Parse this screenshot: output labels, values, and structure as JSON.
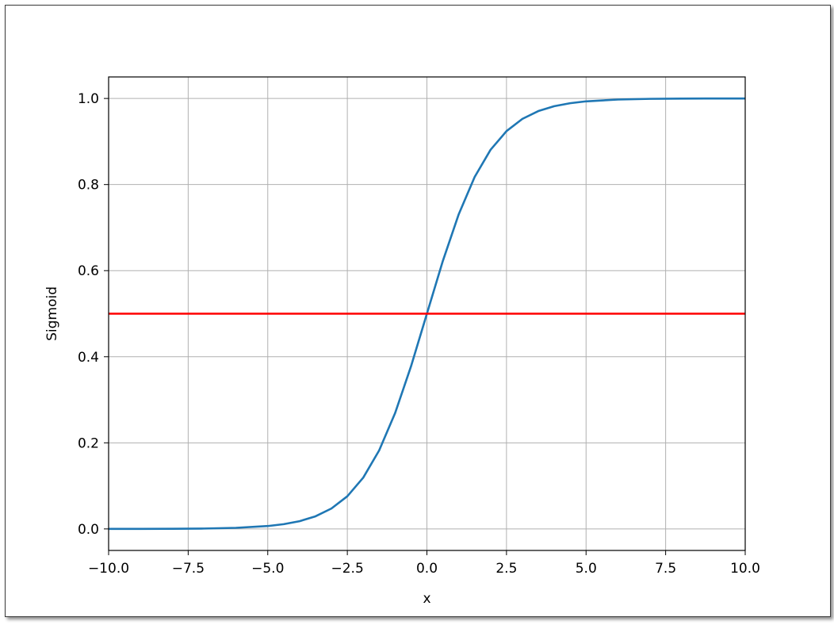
{
  "chart_data": {
    "type": "line",
    "xlabel": "x",
    "ylabel": "Sigmoid",
    "xlim": [
      -10.0,
      10.0
    ],
    "ylim": [
      -0.05,
      1.05
    ],
    "grid": true,
    "x_ticks": [
      -10.0,
      -7.5,
      -5.0,
      -2.5,
      0.0,
      2.5,
      5.0,
      7.5,
      10.0
    ],
    "x_tick_labels": [
      "−10.0",
      "−7.5",
      "−5.0",
      "−2.5",
      "0.0",
      "2.5",
      "5.0",
      "7.5",
      "10.0"
    ],
    "y_ticks": [
      0.0,
      0.2,
      0.4,
      0.6,
      0.8,
      1.0
    ],
    "y_tick_labels": [
      "0.0",
      "0.2",
      "0.4",
      "0.6",
      "0.8",
      "1.0"
    ],
    "series": [
      {
        "color": "#1f77b4",
        "x": [
          -10.0,
          -9.0,
          -8.0,
          -7.0,
          -6.0,
          -5.0,
          -4.5,
          -4.0,
          -3.5,
          -3.0,
          -2.5,
          -2.0,
          -1.5,
          -1.0,
          -0.5,
          0.0,
          0.5,
          1.0,
          1.5,
          2.0,
          2.5,
          3.0,
          3.5,
          4.0,
          4.5,
          5.0,
          6.0,
          7.0,
          8.0,
          9.0,
          10.0
        ],
        "y": [
          0.0,
          0.0001,
          0.0003,
          0.0009,
          0.0025,
          0.0067,
          0.011,
          0.018,
          0.0293,
          0.0474,
          0.0759,
          0.1192,
          0.1824,
          0.2689,
          0.3775,
          0.5,
          0.6225,
          0.7311,
          0.8176,
          0.8808,
          0.9241,
          0.9526,
          0.9707,
          0.982,
          0.989,
          0.9933,
          0.9975,
          0.9991,
          0.9997,
          0.9999,
          1.0
        ]
      },
      {
        "color": "#ff0000",
        "x": [
          -10.0,
          10.0
        ],
        "y": [
          0.5,
          0.5
        ]
      }
    ]
  }
}
